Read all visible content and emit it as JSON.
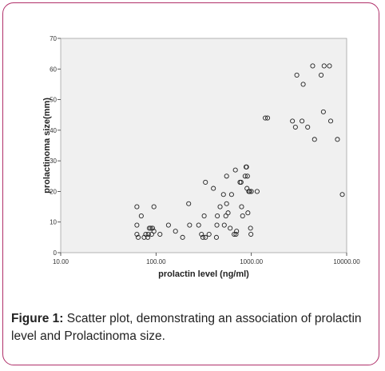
{
  "chart_data": {
    "type": "scatter",
    "xlabel": "prolactin level (ng/ml)",
    "ylabel": "prolactinoma size(mm)",
    "x_scale": "log",
    "xlim": [
      10,
      10000
    ],
    "ylim": [
      0,
      70
    ],
    "x_ticks": [
      10,
      100,
      1000,
      10000
    ],
    "x_tick_labels": [
      "10.00",
      "100.00",
      "1000.00",
      "10000.00"
    ],
    "y_ticks": [
      0,
      10,
      20,
      30,
      40,
      50,
      60,
      70
    ],
    "y_tick_labels": [
      "0",
      "10",
      "20",
      "30",
      "40",
      "50",
      "60",
      "70"
    ],
    "grid": false,
    "plot_background": "#f0f0f0",
    "marker": "open-circle",
    "points": [
      {
        "x": 63,
        "y": 15
      },
      {
        "x": 63,
        "y": 9
      },
      {
        "x": 63,
        "y": 6
      },
      {
        "x": 65,
        "y": 5
      },
      {
        "x": 70,
        "y": 12
      },
      {
        "x": 75,
        "y": 5
      },
      {
        "x": 78,
        "y": 6
      },
      {
        "x": 82,
        "y": 5
      },
      {
        "x": 83,
        "y": 6
      },
      {
        "x": 85,
        "y": 8
      },
      {
        "x": 88,
        "y": 8
      },
      {
        "x": 90,
        "y": 6
      },
      {
        "x": 92,
        "y": 8
      },
      {
        "x": 95,
        "y": 15
      },
      {
        "x": 95,
        "y": 7
      },
      {
        "x": 110,
        "y": 6
      },
      {
        "x": 135,
        "y": 9
      },
      {
        "x": 160,
        "y": 7
      },
      {
        "x": 190,
        "y": 5
      },
      {
        "x": 220,
        "y": 16
      },
      {
        "x": 225,
        "y": 9
      },
      {
        "x": 280,
        "y": 9
      },
      {
        "x": 300,
        "y": 6
      },
      {
        "x": 310,
        "y": 5
      },
      {
        "x": 320,
        "y": 12
      },
      {
        "x": 330,
        "y": 5
      },
      {
        "x": 330,
        "y": 23
      },
      {
        "x": 360,
        "y": 6
      },
      {
        "x": 400,
        "y": 21
      },
      {
        "x": 430,
        "y": 5
      },
      {
        "x": 435,
        "y": 9
      },
      {
        "x": 440,
        "y": 12
      },
      {
        "x": 470,
        "y": 15
      },
      {
        "x": 510,
        "y": 19
      },
      {
        "x": 520,
        "y": 9
      },
      {
        "x": 540,
        "y": 12
      },
      {
        "x": 550,
        "y": 16
      },
      {
        "x": 550,
        "y": 25
      },
      {
        "x": 570,
        "y": 13
      },
      {
        "x": 600,
        "y": 8
      },
      {
        "x": 620,
        "y": 19
      },
      {
        "x": 660,
        "y": 6
      },
      {
        "x": 680,
        "y": 27
      },
      {
        "x": 690,
        "y": 6
      },
      {
        "x": 700,
        "y": 7
      },
      {
        "x": 760,
        "y": 23
      },
      {
        "x": 780,
        "y": 23
      },
      {
        "x": 790,
        "y": 15
      },
      {
        "x": 810,
        "y": 12
      },
      {
        "x": 860,
        "y": 25
      },
      {
        "x": 880,
        "y": 28
      },
      {
        "x": 890,
        "y": 28
      },
      {
        "x": 900,
        "y": 21
      },
      {
        "x": 910,
        "y": 25
      },
      {
        "x": 920,
        "y": 13
      },
      {
        "x": 940,
        "y": 20
      },
      {
        "x": 960,
        "y": 20
      },
      {
        "x": 980,
        "y": 8
      },
      {
        "x": 990,
        "y": 6
      },
      {
        "x": 1000,
        "y": 20
      },
      {
        "x": 1150,
        "y": 20
      },
      {
        "x": 1400,
        "y": 44
      },
      {
        "x": 1480,
        "y": 44
      },
      {
        "x": 2700,
        "y": 43
      },
      {
        "x": 2900,
        "y": 41
      },
      {
        "x": 3000,
        "y": 58
      },
      {
        "x": 3400,
        "y": 43
      },
      {
        "x": 3500,
        "y": 55
      },
      {
        "x": 3900,
        "y": 41
      },
      {
        "x": 4400,
        "y": 61
      },
      {
        "x": 4600,
        "y": 37
      },
      {
        "x": 5400,
        "y": 58
      },
      {
        "x": 5700,
        "y": 46
      },
      {
        "x": 5800,
        "y": 61
      },
      {
        "x": 6600,
        "y": 61
      },
      {
        "x": 6800,
        "y": 43
      },
      {
        "x": 8000,
        "y": 37
      },
      {
        "x": 9000,
        "y": 19
      }
    ]
  },
  "caption": {
    "label": "Figure 1:",
    "text": " Scatter plot, demonstrating an association of prolactin level and Prolactinoma size."
  },
  "colors": {
    "frame_border": "#b0306a",
    "plot_background": "#f0f0f0",
    "marker_stroke": "#222222"
  }
}
